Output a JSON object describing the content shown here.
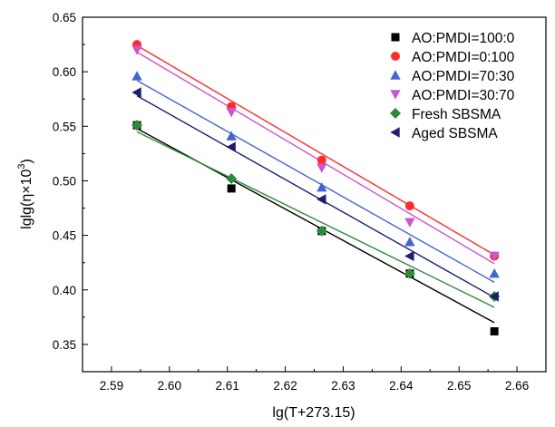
{
  "chart_data": {
    "type": "scatter",
    "title": "",
    "xlabel": "lg(T+273.15)",
    "ylabel_parts": [
      "lglg(η×10",
      "3",
      ")"
    ],
    "xlim": [
      2.585,
      2.665
    ],
    "ylim": [
      0.325,
      0.65
    ],
    "xticks": [
      2.59,
      2.6,
      2.61,
      2.62,
      2.63,
      2.64,
      2.65,
      2.66
    ],
    "xtick_labels": [
      "2.59",
      "2.60",
      "2.61",
      "2.62",
      "2.63",
      "2.64",
      "2.65",
      "2.66"
    ],
    "yticks": [
      0.35,
      0.4,
      0.45,
      0.5,
      0.55,
      0.6,
      0.65
    ],
    "ytick_labels": [
      "0.35",
      "0.40",
      "0.45",
      "0.50",
      "0.55",
      "0.60",
      "0.65"
    ],
    "grid": false,
    "legend_position": "top-right",
    "series": [
      {
        "name": "AO:PMDI=100:0",
        "marker": "square",
        "color": "#000000",
        "x": [
          2.5944,
          2.6107,
          2.6263,
          2.6415,
          2.6561
        ],
        "y": [
          0.551,
          0.493,
          0.454,
          0.415,
          0.362
        ],
        "fit": [
          [
            2.5944,
            0.548
          ],
          [
            2.6561,
            0.37
          ]
        ]
      },
      {
        "name": "AO:PMDI=0:100",
        "marker": "circle",
        "color": "#ff2a2a",
        "x": [
          2.5944,
          2.6107,
          2.6263,
          2.6415,
          2.6561
        ],
        "y": [
          0.625,
          0.568,
          0.519,
          0.477,
          0.431
        ],
        "fit": [
          [
            2.5944,
            0.624
          ],
          [
            2.6561,
            0.432
          ]
        ]
      },
      {
        "name": "AO:PMDI=70:30",
        "marker": "triangle-up",
        "color": "#4466cc",
        "x": [
          2.5944,
          2.6107,
          2.6263,
          2.6415,
          2.6561
        ],
        "y": [
          0.596,
          0.541,
          0.494,
          0.444,
          0.415
        ],
        "fit": [
          [
            2.5944,
            0.592
          ],
          [
            2.6561,
            0.407
          ]
        ]
      },
      {
        "name": "AO:PMDI=30:70",
        "marker": "triangle-down",
        "color": "#cc55cc",
        "x": [
          2.5944,
          2.6107,
          2.6263,
          2.6415,
          2.6561
        ],
        "y": [
          0.62,
          0.563,
          0.512,
          0.462,
          0.431
        ],
        "fit": [
          [
            2.5944,
            0.618
          ],
          [
            2.6561,
            0.424
          ]
        ]
      },
      {
        "name": "Fresh SBSMA",
        "marker": "diamond",
        "color": "#2e8b3e",
        "x": [
          2.5944,
          2.6107,
          2.6263,
          2.6415,
          2.6561
        ],
        "y": [
          0.551,
          0.502,
          0.454,
          0.415,
          0.394
        ],
        "fit": [
          [
            2.5944,
            0.545
          ],
          [
            2.6561,
            0.384
          ]
        ]
      },
      {
        "name": "Aged SBSMA",
        "marker": "triangle-left",
        "color": "#1f1f6e",
        "x": [
          2.5944,
          2.6107,
          2.6263,
          2.6415,
          2.6561
        ],
        "y": [
          0.581,
          0.531,
          0.483,
          0.431,
          0.394
        ],
        "fit": [
          [
            2.5944,
            0.578
          ],
          [
            2.6561,
            0.393
          ]
        ]
      }
    ]
  }
}
